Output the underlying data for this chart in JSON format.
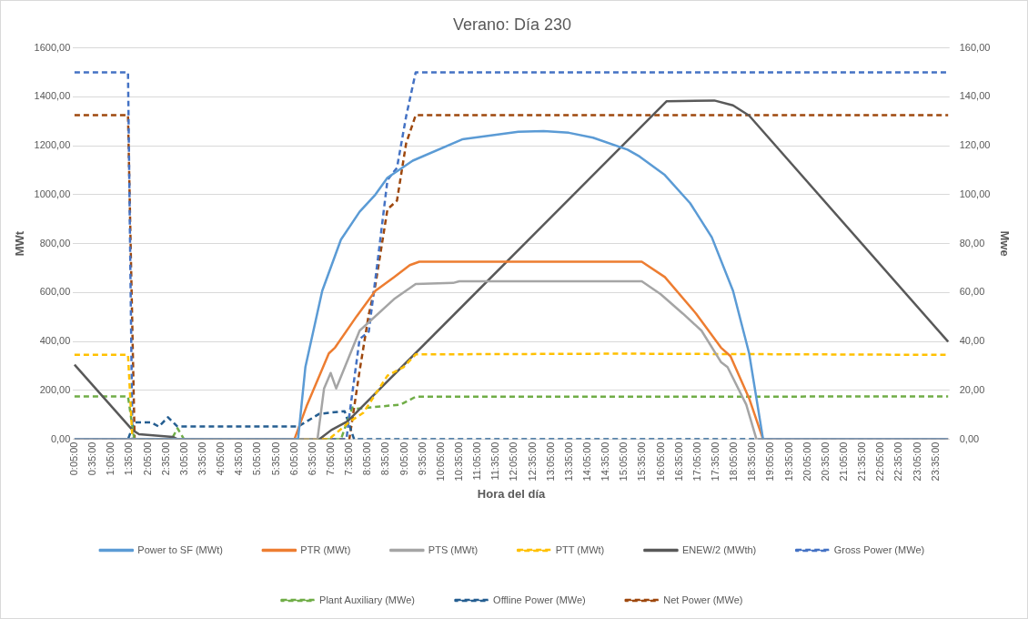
{
  "chart_data": {
    "type": "line",
    "title": "Verano: Día 230",
    "xlabel": "Hora del día",
    "ylabel": "MWt",
    "y2label": "Mwe",
    "xlim": [
      0.0417,
      23.9583
    ],
    "xticks": [
      {
        "value": 0.0833,
        "label": "0:05:00"
      },
      {
        "value": 0.5833,
        "label": "0:35:00"
      },
      {
        "value": 1.0833,
        "label": "1:05:00"
      },
      {
        "value": 1.5833,
        "label": "1:35:00"
      },
      {
        "value": 2.0833,
        "label": "2:05:00"
      },
      {
        "value": 2.5833,
        "label": "2:35:00"
      },
      {
        "value": 3.0833,
        "label": "3:05:00"
      },
      {
        "value": 3.5833,
        "label": "3:35:00"
      },
      {
        "value": 4.0833,
        "label": "4:05:00"
      },
      {
        "value": 4.5833,
        "label": "4:35:00"
      },
      {
        "value": 5.0833,
        "label": "5:05:00"
      },
      {
        "value": 5.5833,
        "label": "5:35:00"
      },
      {
        "value": 6.0833,
        "label": "6:05:00"
      },
      {
        "value": 6.5833,
        "label": "6:35:00"
      },
      {
        "value": 7.0833,
        "label": "7:05:00"
      },
      {
        "value": 7.5833,
        "label": "7:35:00"
      },
      {
        "value": 8.0833,
        "label": "8:05:00"
      },
      {
        "value": 8.5833,
        "label": "8:35:00"
      },
      {
        "value": 9.0833,
        "label": "9:05:00"
      },
      {
        "value": 9.5833,
        "label": "9:35:00"
      },
      {
        "value": 10.0833,
        "label": "10:05:00"
      },
      {
        "value": 10.5833,
        "label": "10:35:00"
      },
      {
        "value": 11.0833,
        "label": "11:05:00"
      },
      {
        "value": 11.5833,
        "label": "11:35:00"
      },
      {
        "value": 12.0833,
        "label": "12:05:00"
      },
      {
        "value": 12.5833,
        "label": "12:35:00"
      },
      {
        "value": 13.0833,
        "label": "13:05:00"
      },
      {
        "value": 13.5833,
        "label": "13:35:00"
      },
      {
        "value": 14.0833,
        "label": "14:05:00"
      },
      {
        "value": 14.5833,
        "label": "14:35:00"
      },
      {
        "value": 15.0833,
        "label": "15:05:00"
      },
      {
        "value": 15.5833,
        "label": "15:35:00"
      },
      {
        "value": 16.0833,
        "label": "16:05:00"
      },
      {
        "value": 16.5833,
        "label": "16:35:00"
      },
      {
        "value": 17.0833,
        "label": "17:05:00"
      },
      {
        "value": 17.5833,
        "label": "17:35:00"
      },
      {
        "value": 18.0833,
        "label": "18:05:00"
      },
      {
        "value": 18.5833,
        "label": "18:35:00"
      },
      {
        "value": 19.0833,
        "label": "19:05:00"
      },
      {
        "value": 19.5833,
        "label": "19:35:00"
      },
      {
        "value": 20.0833,
        "label": "20:05:00"
      },
      {
        "value": 20.5833,
        "label": "20:35:00"
      },
      {
        "value": 21.0833,
        "label": "21:05:00"
      },
      {
        "value": 21.5833,
        "label": "21:35:00"
      },
      {
        "value": 22.0833,
        "label": "22:05:00"
      },
      {
        "value": 22.5833,
        "label": "22:35:00"
      },
      {
        "value": 23.0833,
        "label": "23:05:00"
      },
      {
        "value": 23.5833,
        "label": "23:35:00"
      }
    ],
    "ylim": [
      0,
      1600
    ],
    "yticks": [
      {
        "value": 0,
        "label": "0,00"
      },
      {
        "value": 200,
        "label": "200,00"
      },
      {
        "value": 400,
        "label": "400,00"
      },
      {
        "value": 600,
        "label": "600,00"
      },
      {
        "value": 800,
        "label": "800,00"
      },
      {
        "value": 1000,
        "label": "1000,00"
      },
      {
        "value": 1200,
        "label": "1200,00"
      },
      {
        "value": 1400,
        "label": "1400,00"
      },
      {
        "value": 1600,
        "label": "1600,00"
      }
    ],
    "y2lim": [
      0,
      160
    ],
    "y2ticks": [
      {
        "value": 0,
        "label": "0,00"
      },
      {
        "value": 20,
        "label": "20,00"
      },
      {
        "value": 40,
        "label": "40,00"
      },
      {
        "value": 60,
        "label": "60,00"
      },
      {
        "value": 80,
        "label": "80,00"
      },
      {
        "value": 100,
        "label": "100,00"
      },
      {
        "value": 120,
        "label": "120,00"
      },
      {
        "value": 140,
        "label": "140,00"
      },
      {
        "value": 160,
        "label": "160,00"
      }
    ],
    "grid": "y",
    "legend": "bottom",
    "series": [
      {
        "name": "Power to SF (MWt)",
        "color": "#5b9bd5",
        "line_style": "solid",
        "x": [
          0.08,
          6.18,
          6.38,
          6.84,
          7.35,
          7.86,
          8.29,
          8.62,
          9.31,
          10.66,
          12.19,
          12.88,
          13.57,
          14.23,
          15.17,
          15.5,
          16.19,
          16.88,
          17.47,
          18.05,
          18.49,
          18.87,
          23.92
        ],
        "values": [
          0,
          0,
          295,
          607,
          816,
          930,
          1000,
          1069,
          1139,
          1226,
          1257,
          1260,
          1253,
          1233,
          1184,
          1156,
          1080,
          965,
          826,
          607,
          351,
          0,
          0
        ]
      },
      {
        "name": "PTR (MWt)",
        "color": "#ed7d31",
        "line_style": "solid",
        "x": [
          0.08,
          6.08,
          6.43,
          7.02,
          7.19,
          7.78,
          8.29,
          8.8,
          9.23,
          9.49,
          15.56,
          16.19,
          17.04,
          17.72,
          17.98,
          18.49,
          18.87,
          23.92
        ],
        "values": [
          0,
          0,
          142,
          351,
          375,
          503,
          607,
          663,
          712,
          726,
          726,
          663,
          514,
          375,
          340,
          167,
          0,
          0
        ]
      },
      {
        "name": "PTS (MWt)",
        "color": "#a5a5a5",
        "line_style": "solid",
        "x": [
          0.08,
          6.71,
          6.89,
          7.07,
          7.22,
          7.86,
          8.8,
          9.39,
          10.41,
          10.58,
          15.56,
          16.07,
          16.68,
          17.19,
          17.72,
          17.9,
          18.41,
          18.69,
          23.92
        ],
        "values": [
          0,
          0,
          208,
          271,
          208,
          444,
          573,
          635,
          639,
          646,
          646,
          594,
          514,
          444,
          316,
          295,
          142,
          0,
          0
        ]
      },
      {
        "name": "PTT (MWt)",
        "color": "#ffc000",
        "line_style": "dashed",
        "x": [
          0.08,
          1.54,
          1.66,
          7.02,
          7.6,
          7.96,
          8.62,
          9.06,
          9.39,
          15.0,
          23.92
        ],
        "values": [
          345,
          345,
          0,
          0,
          73,
          108,
          260,
          295,
          347,
          350,
          345
        ]
      },
      {
        "name": "ENEW/2 (MWth)",
        "color": "#595959",
        "line_style": "solid",
        "x": [
          0.08,
          1.66,
          1.84,
          2.76,
          2.9,
          6.76,
          7.09,
          7.53,
          16.24,
          17.54,
          18.05,
          18.49,
          23.92
        ],
        "values": [
          305,
          38,
          21,
          10,
          0,
          0,
          38,
          73,
          1382,
          1385,
          1365,
          1323,
          399
        ]
      },
      {
        "name": "Gross Power (MWe)",
        "color": "#4472c4",
        "line_style": "dashed",
        "axis": "y2",
        "x": [
          0.08,
          1.54,
          1.66,
          7.5,
          7.6,
          7.86,
          8.11,
          8.37,
          8.62,
          8.88,
          9.13,
          9.39,
          23.92
        ],
        "values": [
          150,
          150,
          0,
          0,
          12,
          41,
          44,
          75,
          106,
          111,
          132,
          150,
          150
        ]
      },
      {
        "name": "Plant Auxiliary (MWe)",
        "color": "#70ad47",
        "line_style": "dashed",
        "axis": "y2",
        "x": [
          0.08,
          1.54,
          1.71,
          2.73,
          2.89,
          3.07,
          7.35,
          7.66,
          7.78,
          8.98,
          9.39,
          23.92
        ],
        "values": [
          17.5,
          17.5,
          0,
          0,
          4.5,
          0,
          0,
          13,
          12.5,
          14.2,
          17.4,
          17.5
        ]
      },
      {
        "name": "Offline Power (MWe)",
        "color": "#255e91",
        "line_style": "dashed",
        "axis": "y2",
        "x": [
          0.08,
          1.54,
          1.71,
          2.17,
          2.38,
          2.63,
          2.89,
          6.18,
          6.76,
          7.45,
          7.71,
          23.92
        ],
        "values": [
          0,
          0,
          6.9,
          6.9,
          5.2,
          9,
          5.2,
          5.2,
          10.4,
          11.5,
          0,
          0
        ]
      },
      {
        "name": "Net Power (MWe)",
        "color": "#9e480e",
        "line_style": "dashed",
        "axis": "y2",
        "x": [
          0.08,
          1.54,
          1.72,
          7.58,
          7.86,
          8.11,
          8.29,
          8.62,
          8.88,
          9.13,
          9.39,
          23.92
        ],
        "values": [
          132.5,
          132.5,
          0,
          0,
          28,
          51,
          63,
          94,
          97.6,
          121,
          132.5,
          132.5
        ]
      }
    ]
  }
}
